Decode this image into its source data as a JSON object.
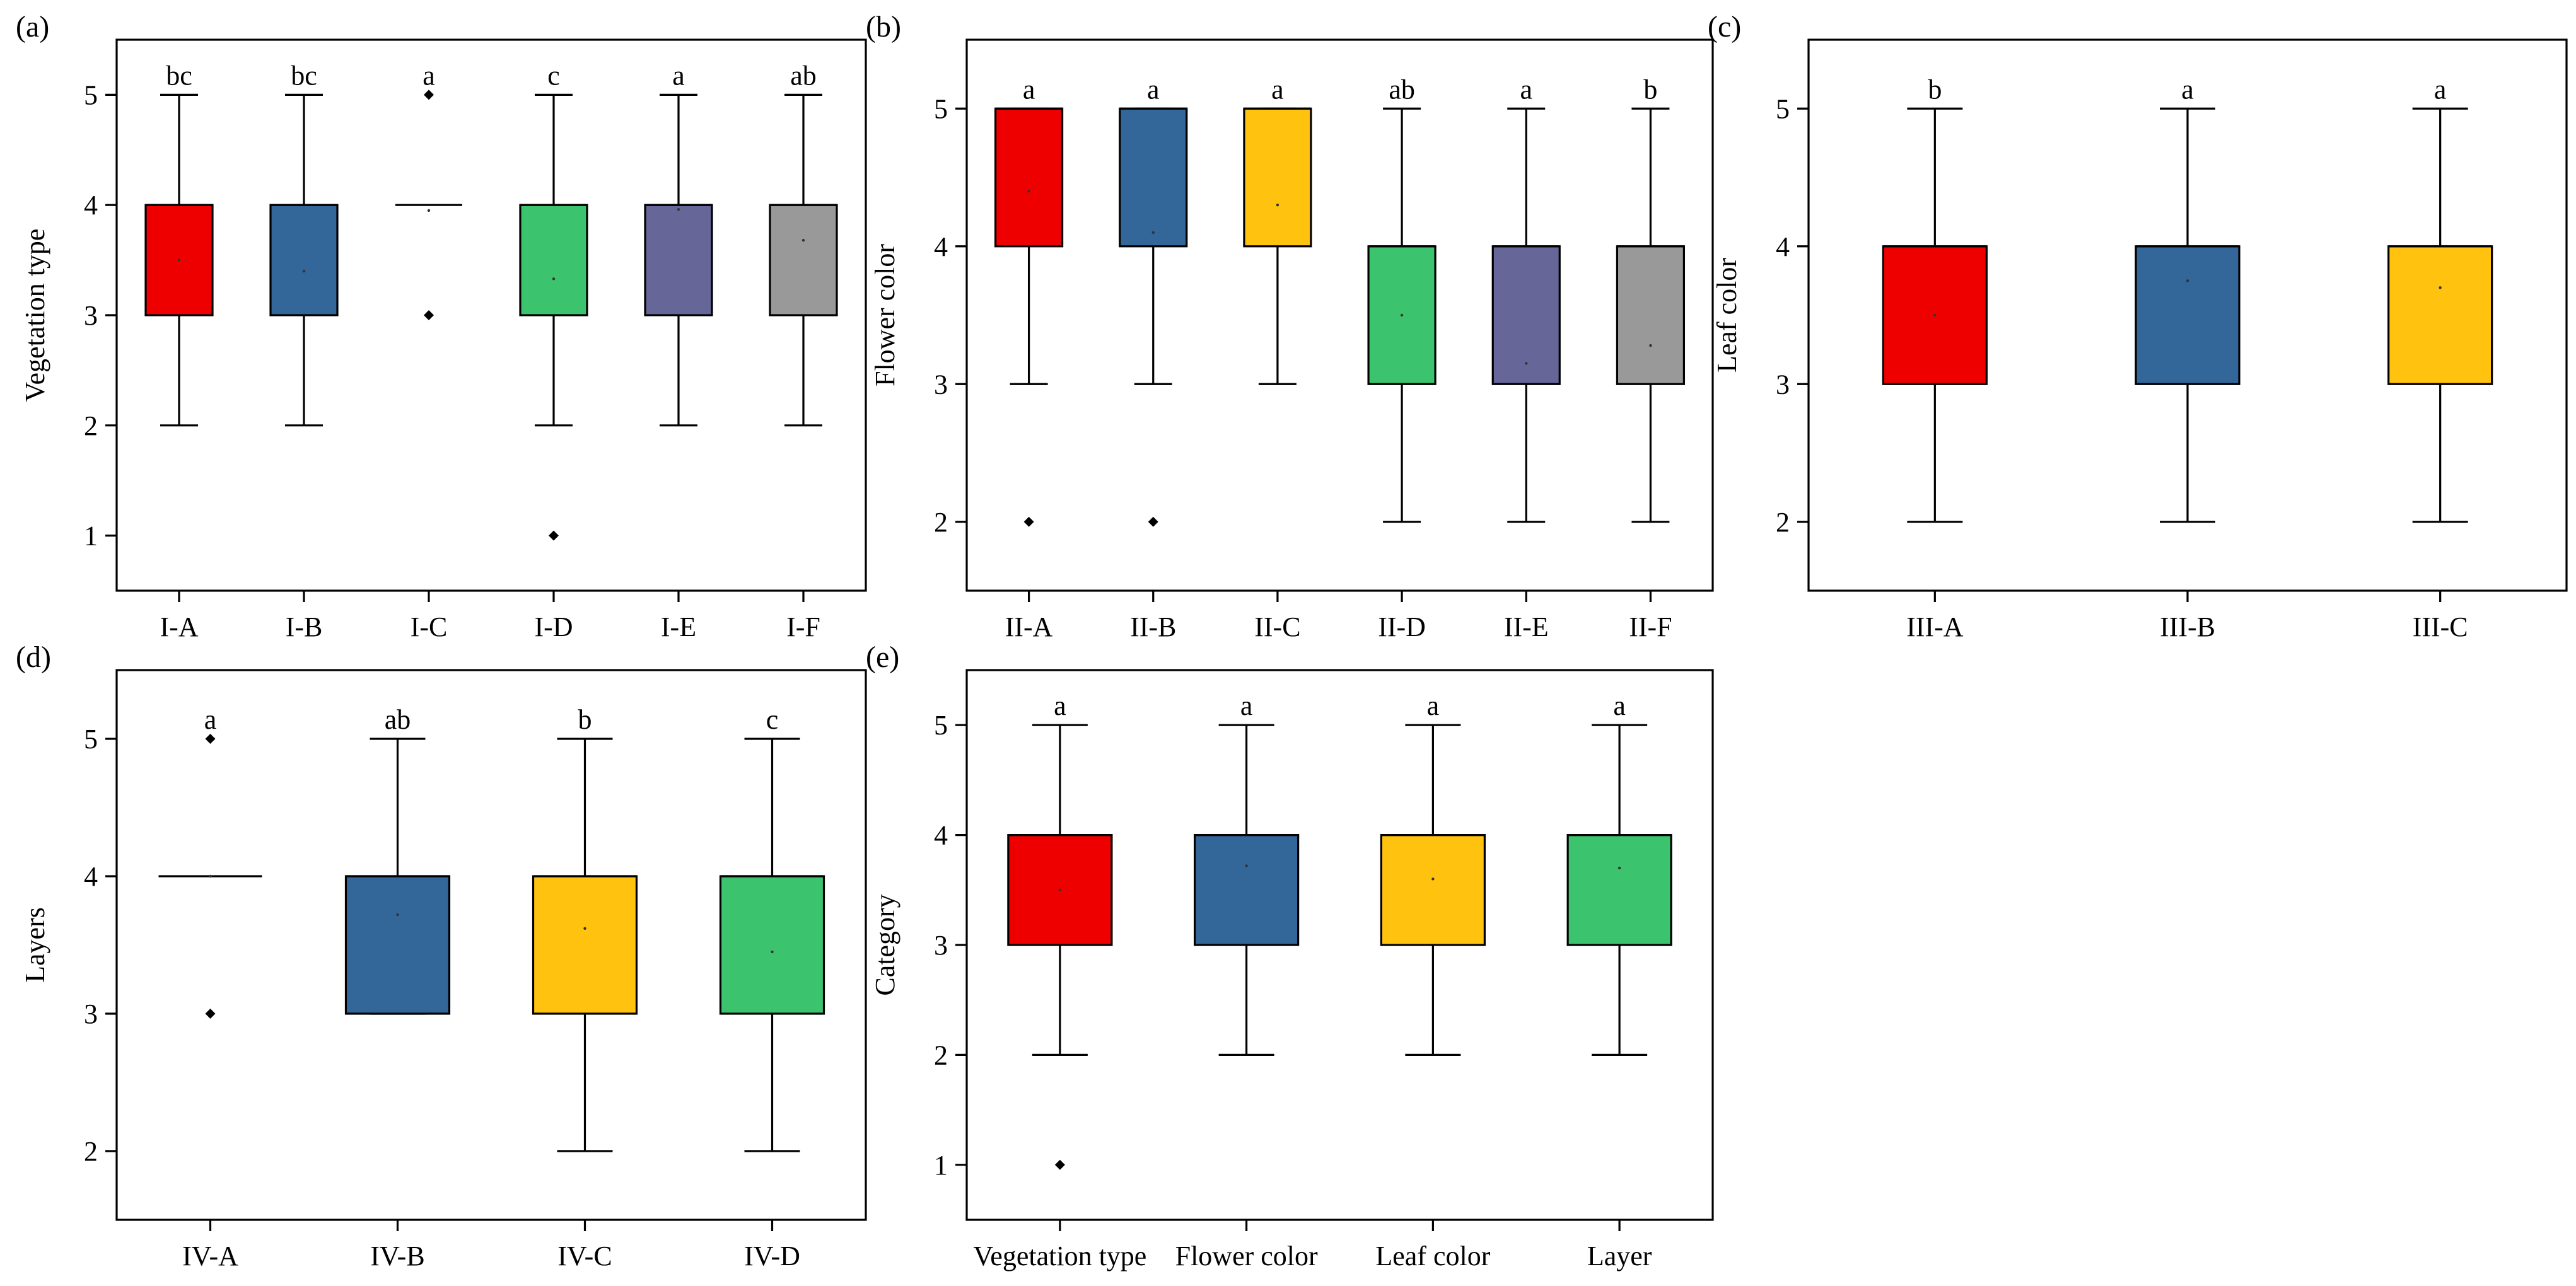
{
  "chart_data": [
    {
      "type": "box",
      "panel": "(a)",
      "ylabel": "Vegetation type",
      "ylim": [
        0.5,
        5.5
      ],
      "yticks": [
        1,
        2,
        3,
        4,
        5
      ],
      "categories": [
        "I-A",
        "I-B",
        "I-C",
        "I-D",
        "I-E",
        "I-F"
      ],
      "boxes": [
        {
          "q1": 3,
          "median": 4,
          "q3": 4,
          "whisker_low": 2,
          "whisker_high": 5,
          "mean": 3.5,
          "outliers": [],
          "letter": "bc",
          "color": "#ee0000"
        },
        {
          "q1": 3,
          "median": 4,
          "q3": 4,
          "whisker_low": 2,
          "whisker_high": 5,
          "mean": 3.4,
          "outliers": [],
          "letter": "bc",
          "color": "#336699"
        },
        {
          "q1": 4,
          "median": 4,
          "q3": 4,
          "whisker_low": 4,
          "whisker_high": 4,
          "mean": 3.95,
          "outliers": [
            5,
            3
          ],
          "letter": "a",
          "color": "#ffc20e"
        },
        {
          "q1": 3,
          "median": 4,
          "q3": 4,
          "whisker_low": 2,
          "whisker_high": 5,
          "mean": 3.33,
          "outliers": [
            1
          ],
          "letter": "c",
          "color": "#3cc36d"
        },
        {
          "q1": 3,
          "median": 4,
          "q3": 4,
          "whisker_low": 2,
          "whisker_high": 5,
          "mean": 3.96,
          "outliers": [],
          "letter": "a",
          "color": "#666699"
        },
        {
          "q1": 3,
          "median": 4,
          "q3": 4,
          "whisker_low": 2,
          "whisker_high": 5,
          "mean": 3.68,
          "outliers": [],
          "letter": "ab",
          "color": "#999999"
        }
      ]
    },
    {
      "type": "box",
      "panel": "(b)",
      "ylabel": "Flower color",
      "ylim": [
        1.5,
        5.5
      ],
      "yticks": [
        2,
        3,
        4,
        5
      ],
      "categories": [
        "II-A",
        "II-B",
        "II-C",
        "II-D",
        "II-E",
        "II-F"
      ],
      "boxes": [
        {
          "q1": 4,
          "median": 5,
          "q3": 5,
          "whisker_low": 3,
          "whisker_high": 5,
          "mean": 4.4,
          "outliers": [
            2
          ],
          "letter": "a",
          "color": "#ee0000"
        },
        {
          "q1": 4,
          "median": 5,
          "q3": 5,
          "whisker_low": 3,
          "whisker_high": 5,
          "mean": 4.1,
          "outliers": [
            2
          ],
          "letter": "a",
          "color": "#336699"
        },
        {
          "q1": 4,
          "median": 5,
          "q3": 5,
          "whisker_low": 3,
          "whisker_high": 5,
          "mean": 4.3,
          "outliers": [],
          "letter": "a",
          "color": "#ffc20e"
        },
        {
          "q1": 3,
          "median": 4,
          "q3": 4,
          "whisker_low": 2,
          "whisker_high": 5,
          "mean": 3.5,
          "outliers": [],
          "letter": "ab",
          "color": "#3cc36d"
        },
        {
          "q1": 3,
          "median": 4,
          "q3": 4,
          "whisker_low": 2,
          "whisker_high": 5,
          "mean": 3.15,
          "outliers": [],
          "letter": "a",
          "color": "#666699"
        },
        {
          "q1": 3,
          "median": 4,
          "q3": 4,
          "whisker_low": 2,
          "whisker_high": 5,
          "mean": 3.28,
          "outliers": [],
          "letter": "b",
          "color": "#999999"
        }
      ]
    },
    {
      "type": "box",
      "panel": "(c)",
      "ylabel": "Leaf color",
      "ylim": [
        1.5,
        5.5
      ],
      "yticks": [
        2,
        3,
        4,
        5
      ],
      "categories": [
        "III-A",
        "III-B",
        "III-C"
      ],
      "boxes": [
        {
          "q1": 3,
          "median": 4,
          "q3": 4,
          "whisker_low": 2,
          "whisker_high": 5,
          "mean": 3.5,
          "outliers": [],
          "letter": "b",
          "color": "#ee0000"
        },
        {
          "q1": 3,
          "median": 4,
          "q3": 4,
          "whisker_low": 2,
          "whisker_high": 5,
          "mean": 3.75,
          "outliers": [],
          "letter": "a",
          "color": "#336699"
        },
        {
          "q1": 3,
          "median": 4,
          "q3": 4,
          "whisker_low": 2,
          "whisker_high": 5,
          "mean": 3.7,
          "outliers": [],
          "letter": "a",
          "color": "#ffc20e"
        }
      ]
    },
    {
      "type": "box",
      "panel": "(d)",
      "ylabel": "Layers",
      "ylim": [
        1.5,
        5.5
      ],
      "yticks": [
        2,
        3,
        4,
        5
      ],
      "categories": [
        "IV-A",
        "IV-B",
        "IV-C",
        "IV-D"
      ],
      "boxes": [
        {
          "q1": 4,
          "median": 4,
          "q3": 4,
          "whisker_low": 4,
          "whisker_high": 4,
          "mean": 4.0,
          "outliers": [
            5,
            3
          ],
          "letter": "a",
          "color": "#ee0000"
        },
        {
          "q1": 3,
          "median": 4,
          "q3": 4,
          "whisker_low": 3,
          "whisker_high": 5,
          "mean": 3.72,
          "outliers": [],
          "letter": "ab",
          "color": "#336699"
        },
        {
          "q1": 3,
          "median": 4,
          "q3": 4,
          "whisker_low": 2,
          "whisker_high": 5,
          "mean": 3.62,
          "outliers": [],
          "letter": "b",
          "color": "#ffc20e"
        },
        {
          "q1": 3,
          "median": 4,
          "q3": 4,
          "whisker_low": 2,
          "whisker_high": 5,
          "mean": 3.45,
          "outliers": [],
          "letter": "c",
          "color": "#3cc36d"
        }
      ]
    },
    {
      "type": "box",
      "panel": "(e)",
      "ylabel": "Category",
      "ylim": [
        0.5,
        5.5
      ],
      "yticks": [
        1,
        2,
        3,
        4,
        5
      ],
      "categories": [
        "Vegetation type",
        "Flower color",
        "Leaf color",
        "Layer"
      ],
      "boxes": [
        {
          "q1": 3,
          "median": 4,
          "q3": 4,
          "whisker_low": 2,
          "whisker_high": 5,
          "mean": 3.5,
          "outliers": [
            1
          ],
          "letter": "a",
          "color": "#ee0000"
        },
        {
          "q1": 3,
          "median": 4,
          "q3": 4,
          "whisker_low": 2,
          "whisker_high": 5,
          "mean": 3.72,
          "outliers": [],
          "letter": "a",
          "color": "#336699"
        },
        {
          "q1": 3,
          "median": 4,
          "q3": 4,
          "whisker_low": 2,
          "whisker_high": 5,
          "mean": 3.6,
          "outliers": [],
          "letter": "a",
          "color": "#ffc20e"
        },
        {
          "q1": 3,
          "median": 4,
          "q3": 4,
          "whisker_low": 2,
          "whisker_high": 5,
          "mean": 3.7,
          "outliers": [],
          "letter": "a",
          "color": "#3cc36d"
        }
      ]
    }
  ]
}
